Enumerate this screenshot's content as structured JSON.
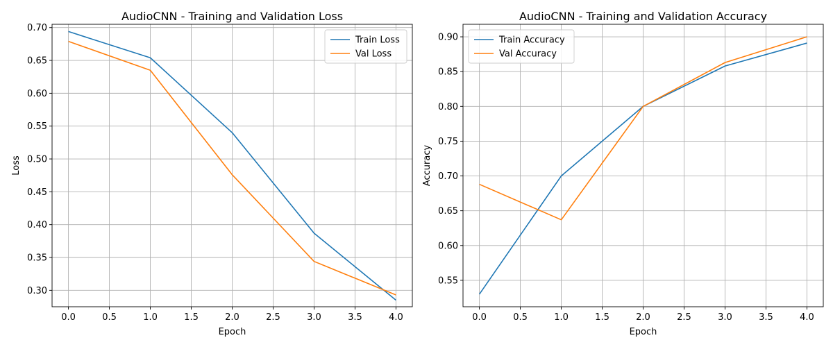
{
  "chart_data": [
    {
      "type": "line",
      "title": "AudioCNN - Training and Validation Loss",
      "xlabel": "Epoch",
      "ylabel": "Loss",
      "x": [
        0,
        1,
        2,
        3,
        4
      ],
      "xlim": [
        -0.2,
        4.2
      ],
      "ylim": [
        0.275,
        0.705
      ],
      "xticks": [
        0.0,
        0.5,
        1.0,
        1.5,
        2.0,
        2.5,
        3.0,
        3.5,
        4.0
      ],
      "yticks": [
        0.3,
        0.35,
        0.4,
        0.45,
        0.5,
        0.55,
        0.6,
        0.65,
        0.7
      ],
      "xtick_labels": [
        "0.0",
        "0.5",
        "1.0",
        "1.5",
        "2.0",
        "2.5",
        "3.0",
        "3.5",
        "4.0"
      ],
      "ytick_labels": [
        "0.30",
        "0.35",
        "0.40",
        "0.45",
        "0.50",
        "0.55",
        "0.60",
        "0.65",
        "0.70"
      ],
      "grid": true,
      "legend_position": "top-right",
      "series": [
        {
          "name": "Train Loss",
          "color": "#1f77b4",
          "values": [
            0.694,
            0.654,
            0.54,
            0.387,
            0.285
          ]
        },
        {
          "name": "Val Loss",
          "color": "#ff7f0e",
          "values": [
            0.679,
            0.635,
            0.476,
            0.344,
            0.293
          ]
        }
      ]
    },
    {
      "type": "line",
      "title": "AudioCNN - Training and Validation Accuracy",
      "xlabel": "Epoch",
      "ylabel": "Accuracy",
      "x": [
        0,
        1,
        2,
        3,
        4
      ],
      "xlim": [
        -0.2,
        4.2
      ],
      "ylim": [
        0.512,
        0.918
      ],
      "xticks": [
        0.0,
        0.5,
        1.0,
        1.5,
        2.0,
        2.5,
        3.0,
        3.5,
        4.0
      ],
      "yticks": [
        0.55,
        0.6,
        0.65,
        0.7,
        0.75,
        0.8,
        0.85,
        0.9
      ],
      "xtick_labels": [
        "0.0",
        "0.5",
        "1.0",
        "1.5",
        "2.0",
        "2.5",
        "3.0",
        "3.5",
        "4.0"
      ],
      "ytick_labels": [
        "0.55",
        "0.60",
        "0.65",
        "0.70",
        "0.75",
        "0.80",
        "0.85",
        "0.90"
      ],
      "grid": true,
      "legend_position": "top-left",
      "series": [
        {
          "name": "Train Accuracy",
          "color": "#1f77b4",
          "values": [
            0.53,
            0.7,
            0.8,
            0.858,
            0.891
          ]
        },
        {
          "name": "Val Accuracy",
          "color": "#ff7f0e",
          "values": [
            0.688,
            0.637,
            0.8,
            0.863,
            0.9
          ]
        }
      ]
    }
  ]
}
